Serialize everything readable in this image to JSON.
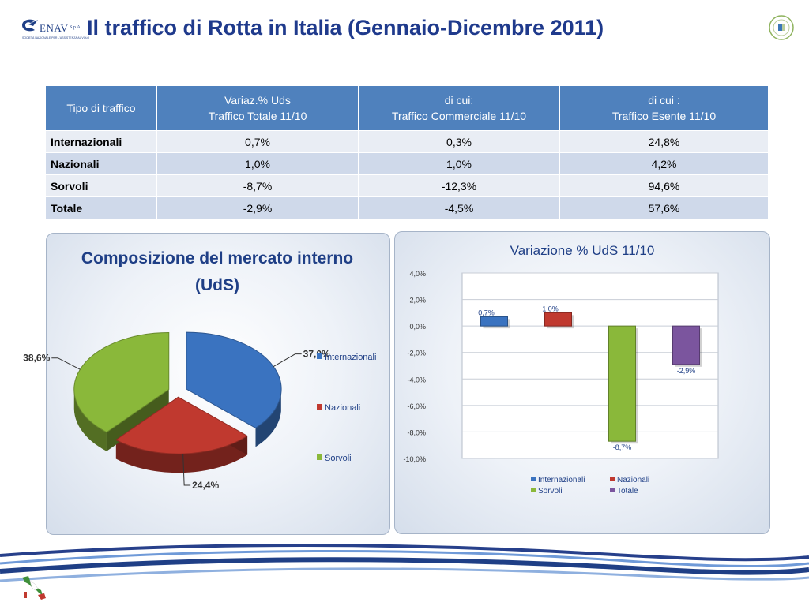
{
  "header": {
    "logo_word": "ENAV",
    "logo_spa": "S.p.A.",
    "logo_tagline": "SOCIETÀ NAZIONALE PER L'ASSISTENZA AL VOLO",
    "title": "Il traffico di Rotta in Italia (Gennaio-Dicembre 2011)"
  },
  "table": {
    "headers": [
      {
        "line1": "Tipo di traffico",
        "line2": ""
      },
      {
        "line1": "Variaz.% Uds",
        "line2": "Traffico Totale 11/10"
      },
      {
        "line1": "di cui:",
        "line2": "Traffico Commerciale 11/10"
      },
      {
        "line1": "di cui :",
        "line2": "Traffico Esente 11/10"
      }
    ],
    "rows": [
      {
        "label": "Internazionali",
        "totale": "0,7%",
        "commerciale": "0,3%",
        "esente": "24,8%"
      },
      {
        "label": "Nazionali",
        "totale": "1,0%",
        "commerciale": "1,0%",
        "esente": "4,2%"
      },
      {
        "label": "Sorvoli",
        "totale": "-8,7%",
        "commerciale": "-12,3%",
        "esente": "94,6%"
      },
      {
        "label": "Totale",
        "totale": "-2,9%",
        "commerciale": "-4,5%",
        "esente": "57,6%"
      }
    ]
  },
  "pie_chart": {
    "title_line1": "Composizione del mercato interno",
    "title_line2": "(UdS)",
    "slices": [
      {
        "name": "Internazionali",
        "value": 37.0,
        "label": "37,0%",
        "color": "#3a73c0"
      },
      {
        "name": "Nazionali",
        "value": 24.4,
        "label": "24,4%",
        "color": "#c0392f"
      },
      {
        "name": "Sorvoli",
        "value": 38.6,
        "label": "38,6%",
        "color": "#8ab83a"
      }
    ]
  },
  "bar_chart": {
    "title": "Variazione % UdS 11/10",
    "ylim": [
      -10,
      4
    ],
    "ticks": [
      "4,0%",
      "2,0%",
      "0,0%",
      "-2,0%",
      "-4,0%",
      "-6,0%",
      "-8,0%",
      "-10,0%"
    ],
    "series": [
      {
        "name": "Internazionali",
        "value": 0.7,
        "label": "0,7%",
        "color": "#3a73c0"
      },
      {
        "name": "Nazionali",
        "value": 1.0,
        "label": "1,0%",
        "color": "#c0392f"
      },
      {
        "name": "Sorvoli",
        "value": -8.7,
        "label": "-8,7%",
        "color": "#8ab83a"
      },
      {
        "name": "Totale",
        "value": -2.9,
        "label": "-2,9%",
        "color": "#7b559e"
      }
    ]
  },
  "colors": {
    "title": "#1f3a8c",
    "table_header": "#4f81bd",
    "chart_title": "#1f3f86"
  }
}
